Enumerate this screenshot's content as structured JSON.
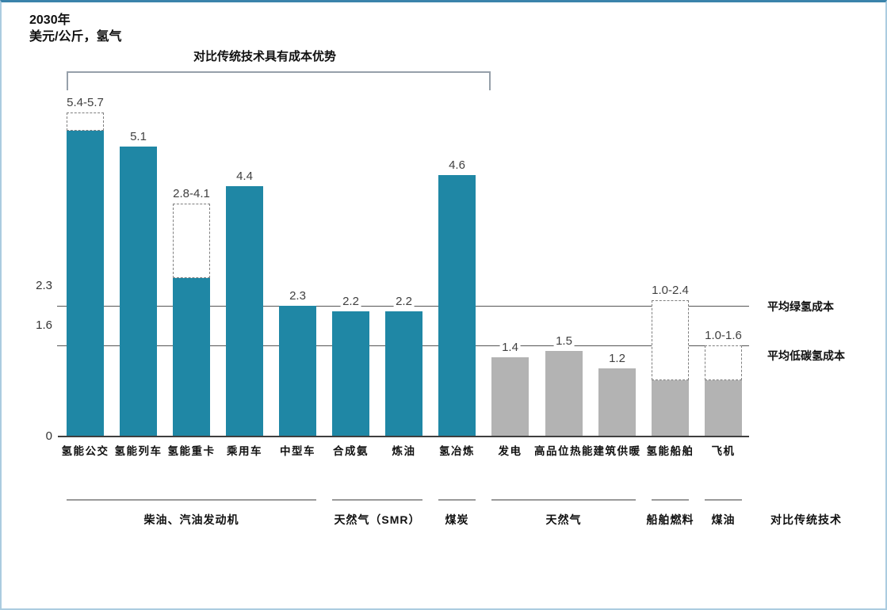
{
  "header": {
    "title": "2030年",
    "subtitle": "美元/公斤，氢气"
  },
  "annotations": {
    "bracket_label": "对比传统技术具有成本优势",
    "compare_label": "对比传统技术"
  },
  "colors": {
    "teal": "#1f87a5",
    "gray": "#b3b3b3",
    "reference_line": "#555555",
    "axis": "#3f3f3f",
    "frame_top": "#3a83ab",
    "frame_side": "#abcce0"
  },
  "chart_data": {
    "type": "bar",
    "title": "2030年",
    "ylabel": "美元/公斤，氢气",
    "ylim": [
      0,
      6.4
    ],
    "grid": false,
    "legend": "none",
    "categories": [
      "氢能公交",
      "氢能列车",
      "氢能重卡",
      "乘用车",
      "中型车",
      "合成氨",
      "炼油",
      "氢冶炼",
      "发电",
      "高品位热能",
      "建筑供暖",
      "氢能船舶",
      "飞机"
    ],
    "bars": [
      {
        "label": "氢能公交",
        "value": 5.4,
        "range_max": 5.7,
        "display": "5.4-5.7",
        "color": "teal"
      },
      {
        "label": "氢能列车",
        "value": 5.1,
        "range_max": null,
        "display": "5.1",
        "color": "teal"
      },
      {
        "label": "氢能重卡",
        "value": 2.8,
        "range_max": 4.1,
        "display": "2.8-4.1",
        "color": "teal"
      },
      {
        "label": "乘用车",
        "value": 4.4,
        "range_max": null,
        "display": "4.4",
        "color": "teal"
      },
      {
        "label": "中型车",
        "value": 2.3,
        "range_max": null,
        "display": "2.3",
        "color": "teal"
      },
      {
        "label": "合成氨",
        "value": 2.2,
        "range_max": null,
        "display": "2.2",
        "color": "teal"
      },
      {
        "label": "炼油",
        "value": 2.2,
        "range_max": null,
        "display": "2.2",
        "color": "teal"
      },
      {
        "label": "氢冶炼",
        "value": 4.6,
        "range_max": null,
        "display": "4.6",
        "color": "teal"
      },
      {
        "label": "发电",
        "value": 1.4,
        "range_max": null,
        "display": "1.4",
        "color": "gray"
      },
      {
        "label": "高品位热能",
        "value": 1.5,
        "range_max": null,
        "display": "1.5",
        "color": "gray"
      },
      {
        "label": "建筑供暖",
        "value": 1.2,
        "range_max": null,
        "display": "1.2",
        "color": "gray"
      },
      {
        "label": "氢能船舶",
        "value": 1.0,
        "range_max": 2.4,
        "display": "1.0-2.4",
        "color": "gray"
      },
      {
        "label": "飞机",
        "value": 1.0,
        "range_max": 1.6,
        "display": "1.0-1.6",
        "color": "gray"
      }
    ],
    "reference_lines": [
      {
        "value": 2.3,
        "tick": "2.3",
        "label": "平均绿氢成本"
      },
      {
        "value": 1.6,
        "tick": "1.6",
        "label": "平均低碳氢成本"
      }
    ],
    "yticks": [
      {
        "value": 0,
        "label": "0"
      }
    ],
    "groups": [
      {
        "label": "柴油、汽油发动机",
        "from": 0,
        "to": 4
      },
      {
        "label": "天然气（SMR）",
        "from": 5,
        "to": 6
      },
      {
        "label": "煤炭",
        "from": 7,
        "to": 7
      },
      {
        "label": "天然气",
        "from": 8,
        "to": 10
      },
      {
        "label": "船舶燃料",
        "from": 11,
        "to": 11
      },
      {
        "label": "煤油",
        "from": 12,
        "to": 12
      }
    ],
    "cost_advantage_bracket": {
      "from": 0,
      "to": 7,
      "label": "对比传统技术具有成本优势"
    },
    "legend_note": "对比传统技术"
  }
}
